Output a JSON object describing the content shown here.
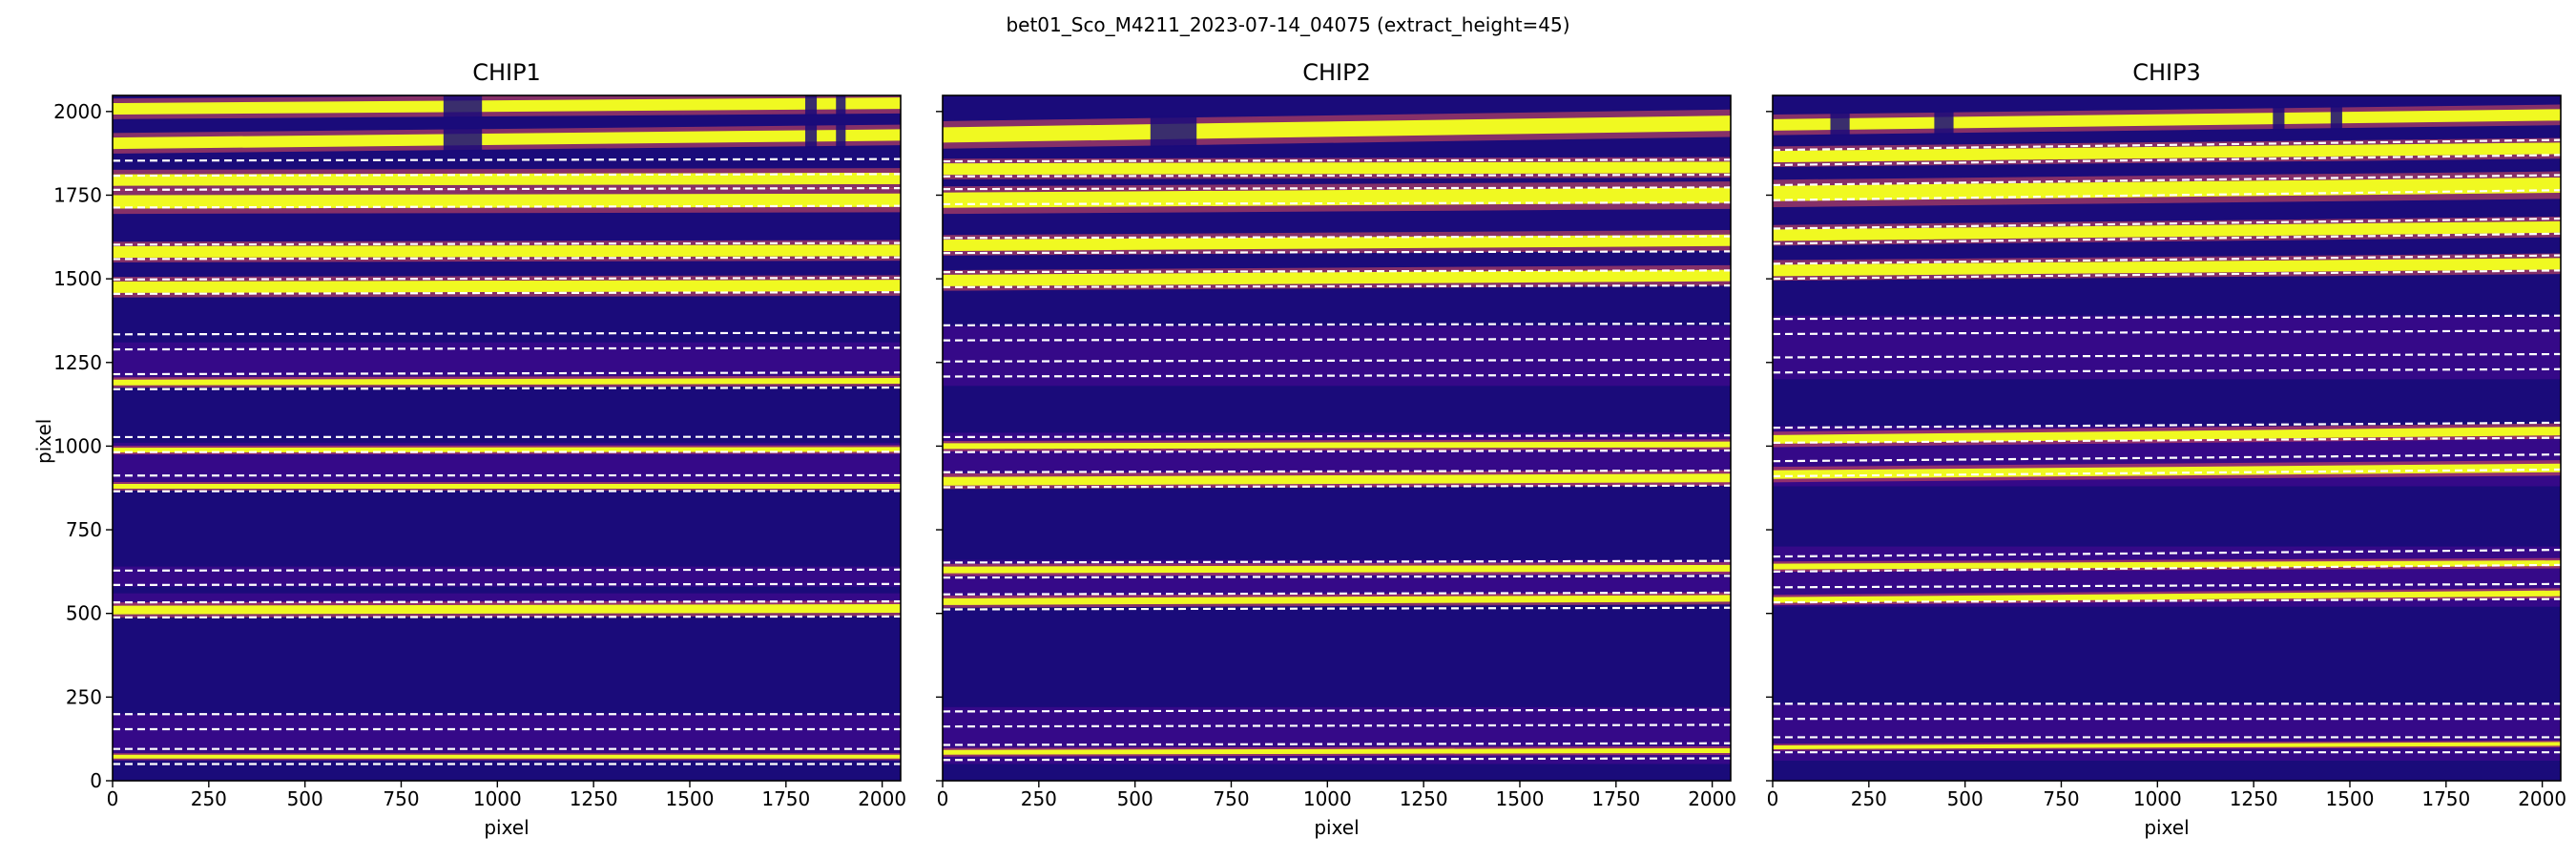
{
  "figure": {
    "title": "bet01_Sco_M4211_2023-07-14_04075  (extract_height=45)",
    "colormap": [
      "#1a0b7a",
      "#3f0a8e",
      "#9b179e",
      "#e0505a",
      "#fdb32f",
      "#f0f921"
    ]
  },
  "chart_data": [
    {
      "type": "heatmap",
      "title": "CHIP1",
      "xlabel": "pixel",
      "ylabel": "pixel",
      "xlim": [
        0,
        2048
      ],
      "ylim": [
        0,
        2048
      ],
      "xticks": [
        0,
        250,
        500,
        750,
        1000,
        1250,
        1500,
        1750,
        2000
      ],
      "yticks": [
        0,
        250,
        500,
        750,
        1000,
        1250,
        1500,
        1750,
        2000
      ],
      "bright_traces": [
        {
          "y0": 2008,
          "y1": 2025,
          "w": 12,
          "gaps": [
            [
              860,
              960
            ],
            [
              1800,
              1830
            ],
            [
              1880,
              1905
            ]
          ]
        },
        {
          "y0": 1905,
          "y1": 1930,
          "w": 12,
          "gaps": [
            [
              860,
              960
            ],
            [
              1800,
              1830
            ],
            [
              1880,
              1905
            ]
          ]
        },
        {
          "y0": 1795,
          "y1": 1800,
          "w": 12,
          "gaps": []
        },
        {
          "y0": 1730,
          "y1": 1735,
          "w": 14,
          "gaps": []
        },
        {
          "y0": 1580,
          "y1": 1585,
          "w": 12,
          "gaps": []
        },
        {
          "y0": 1475,
          "y1": 1480,
          "w": 12,
          "gaps": []
        },
        {
          "y0": 1190,
          "y1": 1195,
          "w": 6,
          "gaps": []
        },
        {
          "y0": 988,
          "y1": 990,
          "w": 5,
          "gaps": []
        },
        {
          "y0": 880,
          "y1": 880,
          "w": 5,
          "gaps": []
        },
        {
          "y0": 510,
          "y1": 515,
          "w": 9,
          "gaps": []
        },
        {
          "y0": 72,
          "y1": 72,
          "w": 4,
          "gaps": []
        }
      ],
      "glow_bands": [
        [
          580,
          640
        ],
        [
          880,
          1010
        ],
        [
          1190,
          1310
        ],
        [
          520,
          560
        ],
        [
          60,
          200
        ]
      ],
      "extraction_boundaries": [
        {
          "y0": 1853,
          "y1": 1858
        },
        {
          "y0": 1808,
          "y1": 1813
        },
        {
          "y0": 1766,
          "y1": 1771
        },
        {
          "y0": 1713,
          "y1": 1718
        },
        {
          "y0": 1602,
          "y1": 1607
        },
        {
          "y0": 1559,
          "y1": 1564
        },
        {
          "y0": 1498,
          "y1": 1503
        },
        {
          "y0": 1455,
          "y1": 1460
        },
        {
          "y0": 1334,
          "y1": 1339
        },
        {
          "y0": 1289,
          "y1": 1294
        },
        {
          "y0": 1215,
          "y1": 1220
        },
        {
          "y0": 1170,
          "y1": 1175
        },
        {
          "y0": 1027,
          "y1": 1028
        },
        {
          "y0": 982,
          "y1": 983
        },
        {
          "y0": 912,
          "y1": 913
        },
        {
          "y0": 865,
          "y1": 866
        },
        {
          "y0": 628,
          "y1": 631
        },
        {
          "y0": 585,
          "y1": 588
        },
        {
          "y0": 533,
          "y1": 536
        },
        {
          "y0": 488,
          "y1": 491
        },
        {
          "y0": 199,
          "y1": 199
        },
        {
          "y0": 154,
          "y1": 154
        },
        {
          "y0": 95,
          "y1": 95
        },
        {
          "y0": 50,
          "y1": 50
        }
      ]
    },
    {
      "type": "heatmap",
      "title": "CHIP2",
      "xlabel": "pixel",
      "xlim": [
        0,
        2048
      ],
      "ylim": [
        0,
        2048
      ],
      "xticks": [
        0,
        250,
        500,
        750,
        1000,
        1250,
        1500,
        1750,
        2000
      ],
      "yticks": [
        0,
        250,
        500,
        750,
        1000,
        1250,
        1500,
        1750,
        2000
      ],
      "bright_traces": [
        {
          "y0": 1930,
          "y1": 1965,
          "w": 16,
          "gaps": [
            [
              540,
              660
            ]
          ]
        },
        {
          "y0": 1828,
          "y1": 1833,
          "w": 12,
          "gaps": []
        },
        {
          "y0": 1735,
          "y1": 1750,
          "w": 16,
          "gaps": []
        },
        {
          "y0": 1600,
          "y1": 1615,
          "w": 12,
          "gaps": []
        },
        {
          "y0": 1495,
          "y1": 1510,
          "w": 12,
          "gaps": []
        },
        {
          "y0": 1000,
          "y1": 1005,
          "w": 6,
          "gaps": []
        },
        {
          "y0": 895,
          "y1": 905,
          "w": 9,
          "gaps": []
        },
        {
          "y0": 630,
          "y1": 635,
          "w": 7,
          "gaps": []
        },
        {
          "y0": 535,
          "y1": 545,
          "w": 7,
          "gaps": []
        },
        {
          "y0": 85,
          "y1": 90,
          "w": 5,
          "gaps": []
        }
      ],
      "glow_bands": [
        [
          540,
          660
        ],
        [
          880,
          1040
        ],
        [
          1180,
          1360
        ],
        [
          50,
          220
        ]
      ],
      "extraction_boundaries": [
        {
          "y0": 1851,
          "y1": 1856
        },
        {
          "y0": 1806,
          "y1": 1811
        },
        {
          "y0": 1768,
          "y1": 1773
        },
        {
          "y0": 1723,
          "y1": 1728
        },
        {
          "y0": 1622,
          "y1": 1627
        },
        {
          "y0": 1577,
          "y1": 1582
        },
        {
          "y0": 1520,
          "y1": 1525
        },
        {
          "y0": 1475,
          "y1": 1480
        },
        {
          "y0": 1361,
          "y1": 1366
        },
        {
          "y0": 1316,
          "y1": 1321
        },
        {
          "y0": 1253,
          "y1": 1258
        },
        {
          "y0": 1208,
          "y1": 1213
        },
        {
          "y0": 1027,
          "y1": 1032
        },
        {
          "y0": 982,
          "y1": 987
        },
        {
          "y0": 922,
          "y1": 927
        },
        {
          "y0": 877,
          "y1": 882
        },
        {
          "y0": 652,
          "y1": 657
        },
        {
          "y0": 607,
          "y1": 612
        },
        {
          "y0": 557,
          "y1": 562
        },
        {
          "y0": 512,
          "y1": 517
        },
        {
          "y0": 207,
          "y1": 212
        },
        {
          "y0": 162,
          "y1": 167
        },
        {
          "y0": 107,
          "y1": 112
        },
        {
          "y0": 62,
          "y1": 67
        }
      ]
    },
    {
      "type": "heatmap",
      "title": "CHIP3",
      "xlabel": "pixel",
      "xlim": [
        0,
        2048
      ],
      "ylim": [
        0,
        2048
      ],
      "xticks": [
        0,
        250,
        500,
        750,
        1000,
        1250,
        1500,
        1750,
        2000
      ],
      "yticks": [
        0,
        250,
        500,
        750,
        1000,
        1250,
        1500,
        1750,
        2000
      ],
      "bright_traces": [
        {
          "y0": 1960,
          "y1": 1990,
          "w": 12,
          "gaps": [
            [
              150,
              200
            ],
            [
              420,
              470
            ],
            [
              1300,
              1330
            ],
            [
              1450,
              1480
            ]
          ]
        },
        {
          "y0": 1865,
          "y1": 1890,
          "w": 12,
          "gaps": []
        },
        {
          "y0": 1755,
          "y1": 1780,
          "w": 16,
          "gaps": []
        },
        {
          "y0": 1630,
          "y1": 1655,
          "w": 12,
          "gaps": []
        },
        {
          "y0": 1525,
          "y1": 1545,
          "w": 12,
          "gaps": []
        },
        {
          "y0": 1020,
          "y1": 1045,
          "w": 9,
          "gaps": []
        },
        {
          "y0": 915,
          "y1": 935,
          "w": 9,
          "gaps": []
        },
        {
          "y0": 640,
          "y1": 650,
          "w": 6,
          "gaps": []
        },
        {
          "y0": 540,
          "y1": 560,
          "w": 6,
          "gaps": []
        },
        {
          "y0": 100,
          "y1": 110,
          "w": 4,
          "gaps": []
        }
      ],
      "glow_bands": [
        [
          520,
          700
        ],
        [
          880,
          1060
        ],
        [
          1200,
          1390
        ],
        [
          60,
          230
        ]
      ],
      "extraction_boundaries": [
        {
          "y0": 1885,
          "y1": 1915
        },
        {
          "y0": 1840,
          "y1": 1870
        },
        {
          "y0": 1780,
          "y1": 1810
        },
        {
          "y0": 1735,
          "y1": 1765
        },
        {
          "y0": 1650,
          "y1": 1680
        },
        {
          "y0": 1605,
          "y1": 1635
        },
        {
          "y0": 1545,
          "y1": 1570
        },
        {
          "y0": 1500,
          "y1": 1525
        },
        {
          "y0": 1380,
          "y1": 1390
        },
        {
          "y0": 1335,
          "y1": 1345
        },
        {
          "y0": 1265,
          "y1": 1275
        },
        {
          "y0": 1220,
          "y1": 1230
        },
        {
          "y0": 1055,
          "y1": 1070
        },
        {
          "y0": 1010,
          "y1": 1025
        },
        {
          "y0": 955,
          "y1": 975
        },
        {
          "y0": 910,
          "y1": 930
        },
        {
          "y0": 670,
          "y1": 690
        },
        {
          "y0": 625,
          "y1": 645
        },
        {
          "y0": 578,
          "y1": 588
        },
        {
          "y0": 533,
          "y1": 543
        },
        {
          "y0": 230,
          "y1": 230
        },
        {
          "y0": 185,
          "y1": 185
        },
        {
          "y0": 130,
          "y1": 130
        },
        {
          "y0": 85,
          "y1": 85
        }
      ]
    }
  ]
}
